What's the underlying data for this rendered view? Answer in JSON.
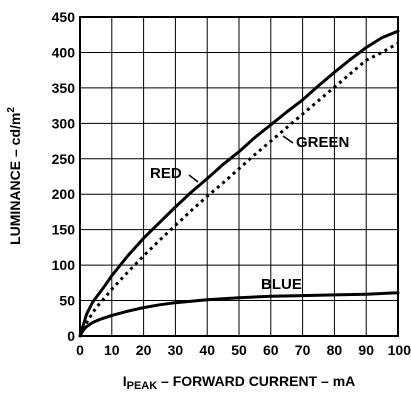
{
  "chart_data": {
    "type": "line",
    "title": "",
    "xlabel_sub": "PEAK",
    "xlabel_prefix": "I",
    "xlabel_rest": " – FORWARD CURRENT – mA",
    "ylabel": "LUMINANCE – cd/m",
    "ylabel_sup": "2",
    "xlim": [
      0,
      100
    ],
    "ylim": [
      0,
      450
    ],
    "x_ticks": [
      0,
      10,
      20,
      30,
      40,
      50,
      60,
      70,
      80,
      90,
      100
    ],
    "y_ticks": [
      0,
      50,
      100,
      150,
      200,
      250,
      300,
      350,
      400,
      450
    ],
    "grid": true,
    "series": [
      {
        "name": "RED",
        "style": "solid",
        "x": [
          0,
          1,
          2,
          4,
          6,
          8,
          10,
          15,
          20,
          25,
          30,
          35,
          40,
          45,
          50,
          55,
          60,
          65,
          70,
          75,
          80,
          85,
          90,
          95,
          100
        ],
        "y": [
          0,
          15,
          30,
          48,
          60,
          72,
          85,
          113,
          138,
          160,
          182,
          203,
          222,
          242,
          260,
          280,
          298,
          316,
          333,
          353,
          372,
          390,
          407,
          421,
          430
        ]
      },
      {
        "name": "GREEN",
        "style": "dotted",
        "x": [
          0,
          1,
          2,
          4,
          6,
          8,
          10,
          15,
          20,
          25,
          30,
          35,
          40,
          45,
          50,
          55,
          60,
          65,
          70,
          75,
          80,
          85,
          90,
          95,
          100
        ],
        "y": [
          0,
          8,
          18,
          33,
          45,
          55,
          66,
          90,
          113,
          135,
          156,
          177,
          197,
          216,
          236,
          256,
          275,
          294,
          313,
          332,
          351,
          370,
          389,
          400,
          413
        ]
      },
      {
        "name": "BLUE",
        "style": "solid",
        "x": [
          0,
          1,
          2,
          4,
          6,
          8,
          10,
          15,
          20,
          25,
          30,
          35,
          40,
          50,
          60,
          70,
          80,
          90,
          100
        ],
        "y": [
          0,
          8,
          13,
          19,
          23,
          26,
          29,
          35,
          40,
          44,
          47,
          49,
          51,
          54,
          56,
          57,
          58,
          59,
          61
        ]
      }
    ]
  }
}
